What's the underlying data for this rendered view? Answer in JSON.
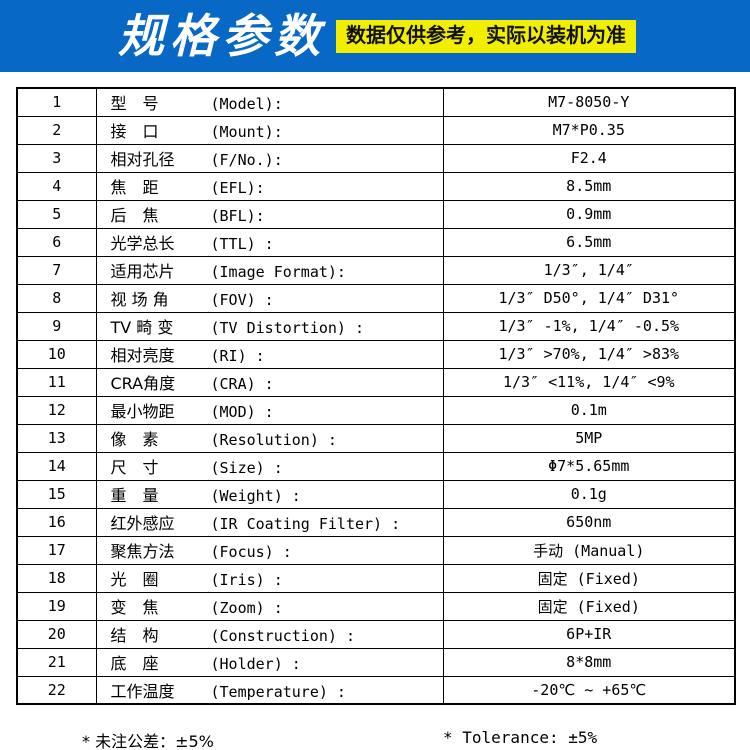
{
  "header": {
    "title": "规格参数",
    "badge": "数据仅供参考，实际以装机为准"
  },
  "colors": {
    "header_blue": "#0768c6",
    "badge_yellow": "#f2ee00",
    "border_black": "#000000"
  },
  "table": {
    "rows": [
      {
        "no": "1",
        "cn": "型　号",
        "en": "(Model):",
        "value": "M7-8050-Y"
      },
      {
        "no": "2",
        "cn": "接　口",
        "en": "(Mount):",
        "value": "M7*P0.35"
      },
      {
        "no": "3",
        "cn": "相对孔径",
        "en": "(F/No.):",
        "value": "F2.4"
      },
      {
        "no": "4",
        "cn": "焦　距",
        "en": "(EFL):",
        "value": "8.5mm"
      },
      {
        "no": "5",
        "cn": "后　焦",
        "en": "(BFL):",
        "value": "0.9mm"
      },
      {
        "no": "6",
        "cn": "光学总长",
        "en": "(TTL) :",
        "value": "6.5mm"
      },
      {
        "no": "7",
        "cn": "适用芯片",
        "en": "(Image Format):",
        "value": "1/3″, 1/4″"
      },
      {
        "no": "8",
        "cn": "视 场 角",
        "en": "(FOV) :",
        "value": "1/3″ D50°, 1/4″ D31°"
      },
      {
        "no": "9",
        "cn": "TV 畸 变",
        "en": "(TV Distortion) :",
        "value": "1/3″ -1%, 1/4″ -0.5%"
      },
      {
        "no": "10",
        "cn": "相对亮度",
        "en": "(RI) :",
        "value": "1/3″ >70%, 1/4″ >83%"
      },
      {
        "no": "11",
        "cn": "CRA角度",
        "en": "(CRA) :",
        "value": "1/3″ <11%, 1/4″ <9%"
      },
      {
        "no": "12",
        "cn": "最小物距",
        "en": "(MOD) :",
        "value": "0.1m"
      },
      {
        "no": "13",
        "cn": "像　素",
        "en": "(Resolution) :",
        "value": "5MP"
      },
      {
        "no": "14",
        "cn": "尺　寸",
        "en": "(Size) :",
        "value": "Φ7*5.65mm"
      },
      {
        "no": "15",
        "cn": "重　量",
        "en": "(Weight) :",
        "value": "0.1g"
      },
      {
        "no": "16",
        "cn": "红外感应",
        "en": "(IR Coating Filter) :",
        "value": "650nm"
      },
      {
        "no": "17",
        "cn": "聚焦方法",
        "en": "(Focus) :",
        "value": "手动 (Manual)"
      },
      {
        "no": "18",
        "cn": "光　圈",
        "en": "(Iris) :",
        "value": "固定 (Fixed)"
      },
      {
        "no": "19",
        "cn": "变　焦",
        "en": "(Zoom) :",
        "value": "固定 (Fixed)"
      },
      {
        "no": "20",
        "cn": "结　构",
        "en": "(Construction) :",
        "value": "6P+IR"
      },
      {
        "no": "21",
        "cn": "底　座",
        "en": "(Holder) :",
        "value": "8*8mm"
      },
      {
        "no": "22",
        "cn": "工作温度",
        "en": "(Temperature) :",
        "value": "-20℃ ~ +65℃"
      }
    ]
  },
  "footer": {
    "note_cn": "* 未注公差：±5%",
    "note_en": "* Tolerance: ±5%"
  }
}
